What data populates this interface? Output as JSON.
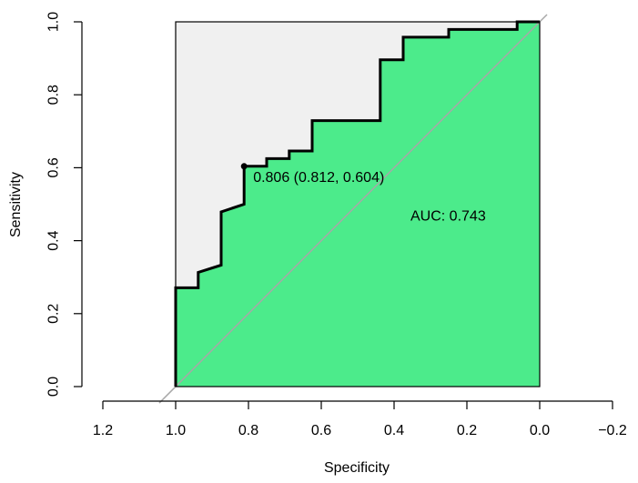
{
  "chart_data": {
    "type": "line",
    "title": "",
    "xlabel": "Specificity",
    "ylabel": "Sensitivity",
    "xlim": [
      1.25,
      -0.25
    ],
    "ylim": [
      -0.04,
      1.04
    ],
    "x_reversed": true,
    "x_ticks": [
      "1.2",
      "1.0",
      "0.8",
      "0.6",
      "0.4",
      "0.2",
      "0.0",
      "−0.2"
    ],
    "x_tick_values": [
      1.2,
      1.0,
      0.8,
      0.6,
      0.4,
      0.2,
      0.0,
      -0.2
    ],
    "y_ticks": [
      "0.0",
      "0.2",
      "0.4",
      "0.6",
      "0.8",
      "1.0"
    ],
    "y_tick_values": [
      0.0,
      0.2,
      0.4,
      0.6,
      0.8,
      1.0
    ],
    "grid": false,
    "colors": {
      "auc_fill": "#4ceb8b",
      "upper_fill": "#f0f0f0",
      "curve": "#000000",
      "diagonal": "#a8a8a8"
    },
    "series": [
      {
        "specificity": [
          1.0,
          1.0,
          0.938,
          0.938,
          0.875,
          0.875,
          0.812,
          0.812,
          0.75,
          0.75,
          0.688,
          0.688,
          0.625,
          0.625,
          0.438,
          0.438,
          0.375,
          0.375,
          0.25,
          0.25,
          0.062,
          0.062,
          0.0
        ],
        "sensitivity": [
          0.0,
          0.271,
          0.271,
          0.313,
          0.333,
          0.479,
          0.5,
          0.604,
          0.604,
          0.625,
          0.625,
          0.646,
          0.646,
          0.729,
          0.729,
          0.896,
          0.896,
          0.958,
          0.958,
          0.979,
          0.979,
          1.0,
          1.0
        ]
      }
    ],
    "threshold_point": {
      "specificity": 0.812,
      "sensitivity": 0.604,
      "label": "0.806 (0.812, 0.604)"
    },
    "auc": {
      "label": "AUC: 0.743",
      "specificity": 0.3,
      "sensitivity": 0.47
    }
  }
}
